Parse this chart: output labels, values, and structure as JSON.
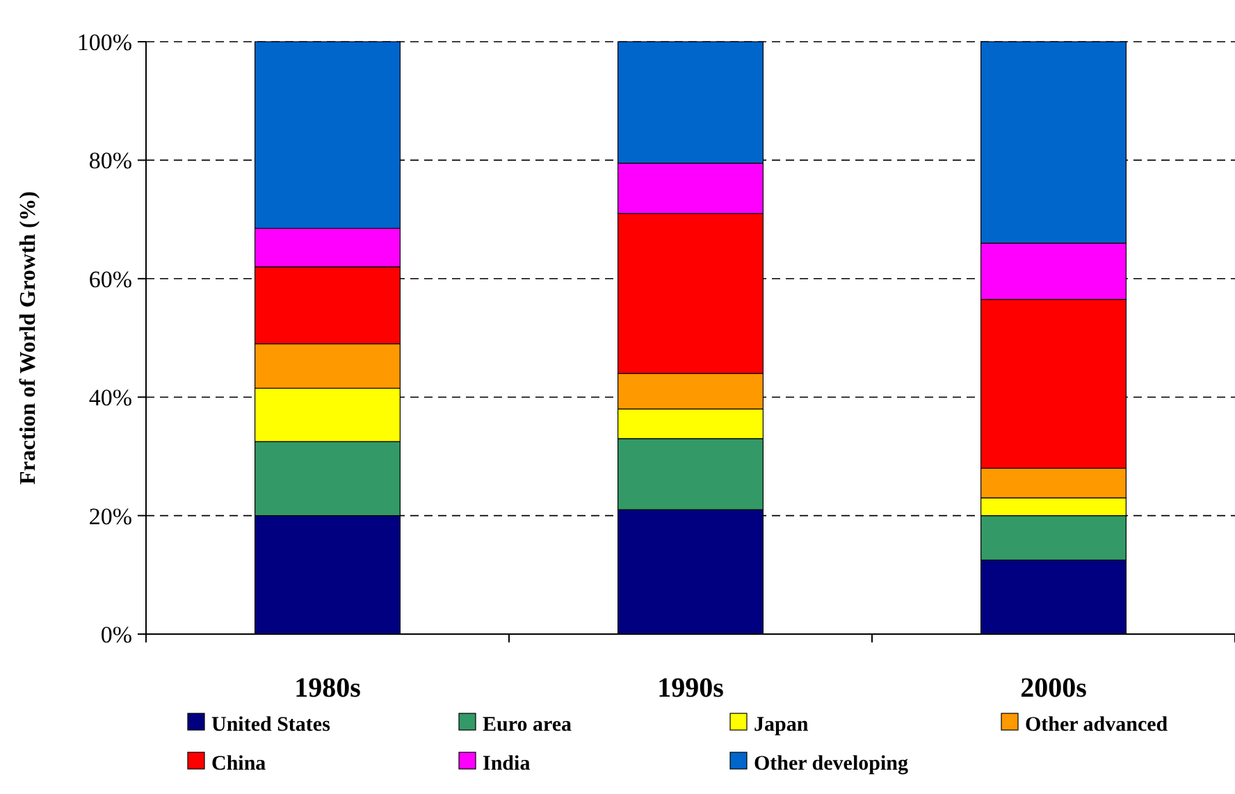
{
  "chart_data": {
    "type": "bar",
    "stacked": true,
    "ylabel": "Fraction of World Growth (%)",
    "categories": [
      "1980s",
      "1990s",
      "2000s"
    ],
    "series": [
      {
        "name": "United States",
        "color": "#000080",
        "values": [
          20,
          21,
          12.5
        ]
      },
      {
        "name": "Euro area",
        "color": "#339966",
        "values": [
          12.5,
          12,
          7.5
        ]
      },
      {
        "name": "Japan",
        "color": "#ffff00",
        "values": [
          9,
          5,
          3
        ]
      },
      {
        "name": "Other advanced",
        "color": "#ff9900",
        "values": [
          7.5,
          6,
          5
        ]
      },
      {
        "name": "China",
        "color": "#ff0000",
        "values": [
          13,
          27,
          28.5
        ]
      },
      {
        "name": "India",
        "color": "#ff00ff",
        "values": [
          6.5,
          8.5,
          9.5
        ]
      },
      {
        "name": "Other developing",
        "color": "#0066cc",
        "values": [
          31.5,
          20.5,
          34
        ]
      }
    ],
    "ylim": [
      0,
      100
    ],
    "yticks": [
      {
        "value": 0,
        "label": "0%"
      },
      {
        "value": 20,
        "label": "20%"
      },
      {
        "value": 40,
        "label": "40%"
      },
      {
        "value": 60,
        "label": "60%"
      },
      {
        "value": 80,
        "label": "80%"
      },
      {
        "value": 100,
        "label": "100%"
      }
    ],
    "grid": "y",
    "legend": "bottom"
  }
}
